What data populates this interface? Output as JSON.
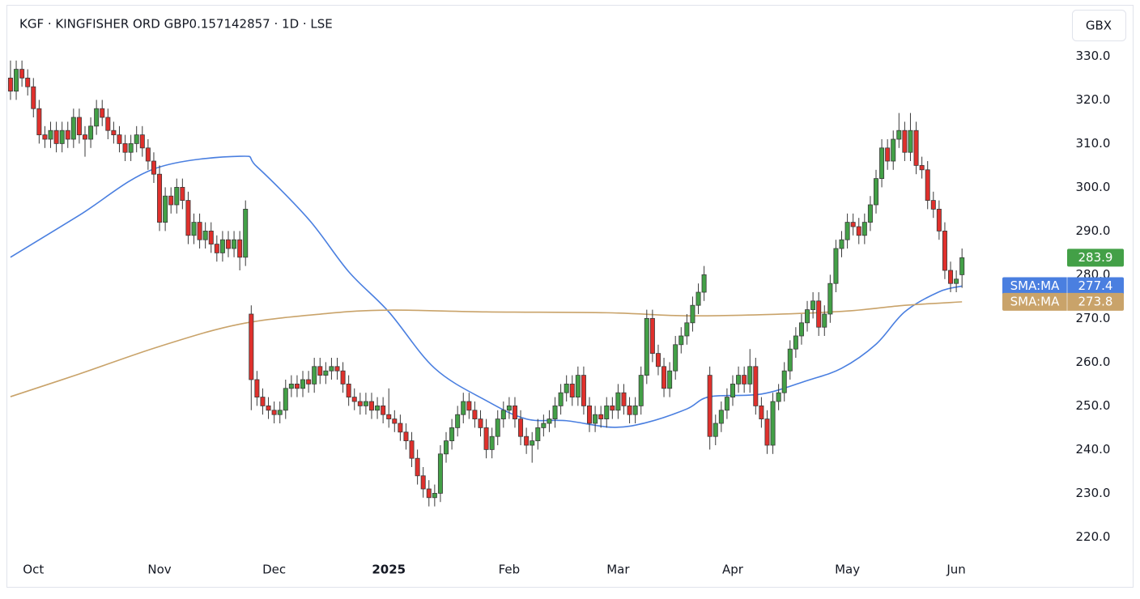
{
  "chart_data": {
    "type": "candlestick",
    "title": "KGF · KINGFISHER ORD GBP0.157142857 · 1D · LSE",
    "currency": "GBX",
    "up_color": "#43a047",
    "down_color": "#e0302c",
    "wick_color": "#3a3a3a",
    "open": [
      325,
      322,
      327,
      325,
      323,
      318,
      312,
      311,
      313,
      310,
      313,
      311,
      316,
      312,
      311,
      314,
      318,
      316,
      313,
      312,
      310,
      308,
      310,
      312,
      309,
      306,
      303,
      292,
      298,
      296,
      300,
      297,
      289,
      292,
      288,
      290,
      287,
      285,
      288,
      286,
      288,
      284,
      271,
      256,
      252,
      250,
      249,
      248,
      249,
      254,
      255,
      254,
      256,
      255,
      259,
      257,
      258,
      259,
      258,
      255,
      252,
      251,
      250,
      251,
      249,
      250,
      248,
      247,
      246,
      244,
      242,
      238,
      234,
      231,
      229,
      230,
      239,
      242,
      245,
      248,
      251,
      249,
      247,
      245,
      240,
      243,
      247,
      249,
      250,
      247,
      243,
      241,
      242,
      245,
      246,
      247,
      250,
      253,
      255,
      252,
      257,
      250,
      246,
      248,
      247,
      250,
      249,
      253,
      250,
      248,
      250,
      257,
      270,
      262,
      259,
      254,
      258,
      264,
      266,
      269,
      273,
      276,
      257,
      243,
      246,
      249,
      252,
      255,
      257,
      255,
      259,
      250,
      247,
      241,
      251,
      253,
      258,
      263,
      266,
      269,
      272,
      274,
      268,
      271,
      278,
      286,
      288,
      292,
      291,
      289,
      292,
      296,
      302,
      309,
      306,
      311,
      313,
      308,
      313,
      305,
      304,
      297,
      295,
      290,
      281,
      278,
      280
    ],
    "high": [
      329,
      329,
      329,
      327,
      325,
      320,
      314,
      315,
      315,
      315,
      315,
      318,
      318,
      314,
      316,
      320,
      320,
      318,
      315,
      314,
      312,
      312,
      314,
      314,
      311,
      308,
      305,
      300,
      300,
      302,
      302,
      299,
      294,
      294,
      292,
      292,
      289,
      290,
      290,
      290,
      290,
      297,
      273,
      258,
      254,
      252,
      251,
      251,
      256,
      257,
      257,
      258,
      258,
      261,
      261,
      260,
      261,
      261,
      260,
      257,
      254,
      253,
      253,
      253,
      252,
      252,
      254,
      249,
      248,
      246,
      244,
      240,
      236,
      233,
      232,
      241,
      244,
      247,
      250,
      253,
      253,
      251,
      249,
      247,
      245,
      249,
      251,
      252,
      252,
      249,
      245,
      244,
      247,
      248,
      249,
      252,
      255,
      257,
      257,
      259,
      259,
      252,
      250,
      250,
      252,
      252,
      255,
      255,
      252,
      252,
      259,
      272,
      272,
      264,
      261,
      260,
      266,
      268,
      271,
      275,
      278,
      282,
      259,
      248,
      251,
      254,
      257,
      259,
      259,
      263,
      261,
      252,
      249,
      253,
      255,
      260,
      265,
      268,
      271,
      274,
      276,
      276,
      273,
      280,
      288,
      290,
      294,
      294,
      293,
      294,
      298,
      304,
      311,
      311,
      313,
      317,
      315,
      317,
      315,
      307,
      306,
      299,
      297,
      292,
      283,
      281,
      286
    ],
    "low": [
      320,
      320,
      323,
      321,
      316,
      310,
      309,
      309,
      308,
      308,
      309,
      309,
      310,
      307,
      309,
      312,
      314,
      311,
      310,
      308,
      306,
      306,
      308,
      307,
      304,
      301,
      290,
      290,
      294,
      294,
      295,
      287,
      287,
      286,
      286,
      285,
      283,
      283,
      284,
      284,
      281,
      282,
      249,
      250,
      248,
      247,
      246,
      246,
      247,
      252,
      252,
      252,
      253,
      253,
      255,
      255,
      256,
      256,
      253,
      250,
      249,
      248,
      248,
      247,
      247,
      246,
      245,
      244,
      242,
      240,
      236,
      232,
      229,
      227,
      227,
      228,
      237,
      240,
      243,
      246,
      247,
      245,
      243,
      238,
      238,
      241,
      245,
      247,
      245,
      241,
      239,
      237,
      240,
      243,
      244,
      245,
      248,
      251,
      250,
      250,
      248,
      244,
      244,
      245,
      245,
      247,
      247,
      248,
      246,
      246,
      248,
      255,
      260,
      257,
      252,
      252,
      256,
      262,
      264,
      267,
      271,
      274,
      240,
      241,
      244,
      247,
      250,
      253,
      253,
      253,
      248,
      245,
      239,
      239,
      249,
      251,
      256,
      261,
      264,
      267,
      270,
      266,
      266,
      269,
      276,
      284,
      286,
      289,
      287,
      287,
      290,
      294,
      300,
      304,
      304,
      309,
      306,
      306,
      303,
      302,
      295,
      293,
      288,
      279,
      276,
      276,
      277
    ],
    "close": [
      322,
      327,
      325,
      323,
      318,
      312,
      311,
      313,
      310,
      313,
      311,
      316,
      312,
      311,
      314,
      318,
      316,
      313,
      312,
      310,
      308,
      310,
      312,
      309,
      306,
      303,
      292,
      298,
      296,
      300,
      297,
      289,
      292,
      288,
      290,
      287,
      285,
      288,
      286,
      288,
      284,
      295,
      256,
      252,
      250,
      249,
      248,
      249,
      254,
      255,
      254,
      256,
      255,
      259,
      257,
      258,
      259,
      258,
      255,
      252,
      251,
      250,
      251,
      249,
      250,
      248,
      247,
      246,
      244,
      242,
      238,
      234,
      231,
      229,
      230,
      239,
      242,
      245,
      248,
      251,
      249,
      247,
      245,
      240,
      243,
      247,
      249,
      250,
      247,
      243,
      241,
      242,
      245,
      246,
      247,
      250,
      253,
      255,
      252,
      257,
      250,
      246,
      248,
      247,
      250,
      249,
      253,
      250,
      248,
      250,
      257,
      270,
      262,
      259,
      254,
      258,
      264,
      266,
      269,
      273,
      276,
      280,
      243,
      246,
      249,
      252,
      255,
      257,
      255,
      259,
      250,
      247,
      241,
      251,
      253,
      258,
      263,
      266,
      269,
      272,
      274,
      268,
      271,
      278,
      286,
      288,
      292,
      291,
      289,
      292,
      296,
      302,
      309,
      306,
      311,
      313,
      308,
      313,
      305,
      304,
      297,
      295,
      290,
      281,
      278,
      279,
      283.9
    ],
    "series": [
      {
        "name": "SMA:MA",
        "color": "#4a7fe0",
        "x": [
          0,
          12,
          25,
          40,
          43,
          52,
          59,
          66,
          74,
          83,
          90,
          97,
          105,
          111,
          118,
          122,
          131,
          139,
          145,
          151,
          156,
          162,
          166
        ],
        "values": [
          284,
          293.6,
          304.2,
          307.1,
          304.7,
          292.7,
          280.7,
          271.5,
          258.6,
          251.2,
          247,
          246.6,
          245.1,
          246.2,
          249.3,
          252.1,
          252.7,
          255.8,
          258.6,
          264.1,
          271.5,
          276.1,
          277.4
        ]
      },
      {
        "name": "SMA:MA",
        "color": "#c9a36a",
        "x": [
          0,
          12,
          26,
          40,
          55,
          66,
          83,
          104,
          118,
          132,
          146,
          156,
          166
        ],
        "values": [
          252.1,
          257.3,
          263.6,
          268.7,
          271.1,
          271.9,
          271.5,
          271.3,
          270.6,
          270.9,
          271.7,
          273,
          273.8
        ]
      }
    ],
    "xlim": [
      -0.7,
      182.5
    ],
    "xticks": [
      {
        "value": 4,
        "label": "Oct"
      },
      {
        "value": 26,
        "label": "Nov"
      },
      {
        "value": 46,
        "label": "Dec"
      },
      {
        "value": 66,
        "label": "2025"
      },
      {
        "value": 87,
        "label": "Feb"
      },
      {
        "value": 106,
        "label": "Mar"
      },
      {
        "value": 126,
        "label": "Apr"
      },
      {
        "value": 146,
        "label": "May"
      },
      {
        "value": 165,
        "label": "Jun"
      }
    ],
    "ylim": [
      216,
      341
    ],
    "yticks": [
      {
        "value": 220,
        "label": "220.0"
      },
      {
        "value": 230,
        "label": "230.0"
      },
      {
        "value": 240,
        "label": "240.0"
      },
      {
        "value": 250,
        "label": "250.0"
      },
      {
        "value": 260,
        "label": "260.0"
      },
      {
        "value": 270,
        "label": "270.0"
      },
      {
        "value": 280,
        "label": "280.0"
      },
      {
        "value": 290,
        "label": "290.0"
      },
      {
        "value": 300,
        "label": "300.0"
      },
      {
        "value": 310,
        "label": "310.0"
      },
      {
        "value": 320,
        "label": "320.0"
      },
      {
        "value": 330,
        "label": "330.0"
      }
    ],
    "grid": false
  }
}
